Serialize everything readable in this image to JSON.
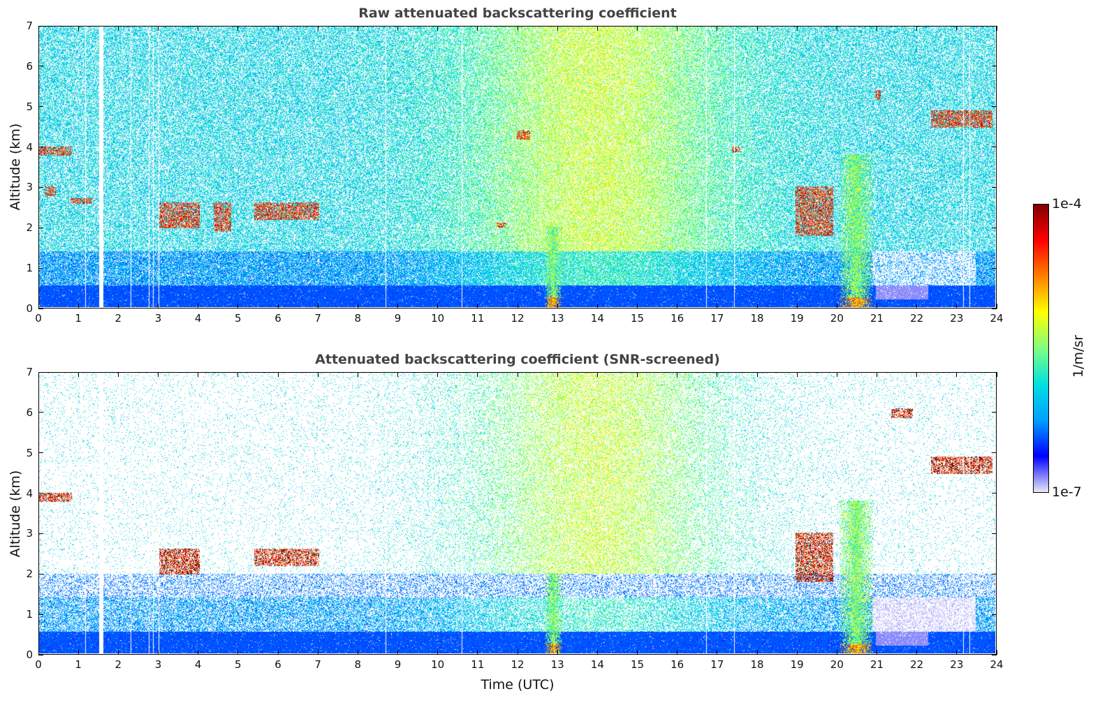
{
  "chart_data": [
    {
      "type": "heatmap",
      "title": "Raw attenuated backscattering coefficient",
      "xlabel": "",
      "ylabel": "Altitude (km)",
      "xlim": [
        0,
        24
      ],
      "ylim": [
        0,
        7
      ],
      "x_ticks": [
        "0",
        "1",
        "2",
        "3",
        "4",
        "5",
        "6",
        "7",
        "8",
        "9",
        "10",
        "11",
        "12",
        "13",
        "14",
        "15",
        "16",
        "17",
        "18",
        "19",
        "20",
        "21",
        "22",
        "23",
        "24"
      ],
      "y_ticks": [
        "0",
        "1",
        "2",
        "3",
        "4",
        "5",
        "6",
        "7"
      ],
      "features": [
        {
          "kind": "cloud",
          "t": [
            0.0,
            0.8
          ],
          "alt": [
            3.8,
            4.0
          ]
        },
        {
          "kind": "cloud",
          "t": [
            0.15,
            0.4
          ],
          "alt": [
            2.8,
            3.0
          ]
        },
        {
          "kind": "cloud",
          "t": [
            0.8,
            1.3
          ],
          "alt": [
            2.6,
            2.7
          ]
        },
        {
          "kind": "cloud",
          "t": [
            3.0,
            4.0
          ],
          "alt": [
            2.0,
            2.6
          ]
        },
        {
          "kind": "cloud",
          "t": [
            4.4,
            4.8
          ],
          "alt": [
            1.9,
            2.6
          ]
        },
        {
          "kind": "cloud",
          "t": [
            5.4,
            7.0
          ],
          "alt": [
            2.2,
            2.6
          ]
        },
        {
          "kind": "cloud",
          "t": [
            11.5,
            11.7
          ],
          "alt": [
            2.0,
            2.1
          ]
        },
        {
          "kind": "cloud",
          "t": [
            12.0,
            12.3
          ],
          "alt": [
            4.2,
            4.4
          ]
        },
        {
          "kind": "cloud",
          "t": [
            17.4,
            17.6
          ],
          "alt": [
            3.9,
            4.0
          ]
        },
        {
          "kind": "cloud",
          "t": [
            19.0,
            19.9
          ],
          "alt": [
            1.8,
            3.0
          ]
        },
        {
          "kind": "cloud",
          "t": [
            21.0,
            21.1
          ],
          "alt": [
            5.2,
            5.4
          ]
        },
        {
          "kind": "cloud",
          "t": [
            22.4,
            23.9
          ],
          "alt": [
            4.5,
            4.9
          ]
        },
        {
          "kind": "plume",
          "t": [
            12.7,
            13.1
          ],
          "alt": [
            0.0,
            2.0
          ]
        },
        {
          "kind": "plume",
          "t": [
            20.1,
            20.9
          ],
          "alt": [
            0.0,
            3.8
          ]
        }
      ],
      "data_gaps": [
        1.5,
        1.15,
        2.3,
        2.75,
        2.85,
        3.0,
        8.7,
        10.6,
        16.75,
        17.45,
        23.2,
        23.35
      ]
    },
    {
      "type": "heatmap",
      "title": "Attenuated backscattering coefficient (SNR-screened)",
      "xlabel": "Time (UTC)",
      "ylabel": "Altitude (km)",
      "xlim": [
        0,
        24
      ],
      "ylim": [
        0,
        7
      ],
      "x_ticks": [
        "0",
        "1",
        "2",
        "3",
        "4",
        "5",
        "6",
        "7",
        "8",
        "9",
        "10",
        "11",
        "12",
        "13",
        "14",
        "15",
        "16",
        "17",
        "18",
        "19",
        "20",
        "21",
        "22",
        "23",
        "24"
      ],
      "y_ticks": [
        "0",
        "1",
        "2",
        "3",
        "4",
        "5",
        "6",
        "7"
      ],
      "features": [
        {
          "kind": "cloud",
          "t": [
            0.0,
            0.8
          ],
          "alt": [
            3.8,
            4.0
          ]
        },
        {
          "kind": "cloud",
          "t": [
            3.0,
            4.0
          ],
          "alt": [
            2.0,
            2.6
          ]
        },
        {
          "kind": "cloud",
          "t": [
            5.4,
            7.0
          ],
          "alt": [
            2.2,
            2.6
          ]
        },
        {
          "kind": "cloud",
          "t": [
            19.0,
            19.9
          ],
          "alt": [
            1.8,
            3.0
          ]
        },
        {
          "kind": "cloud",
          "t": [
            21.4,
            21.9
          ],
          "alt": [
            5.9,
            6.1
          ]
        },
        {
          "kind": "cloud",
          "t": [
            22.4,
            23.9
          ],
          "alt": [
            4.5,
            4.9
          ]
        },
        {
          "kind": "plume",
          "t": [
            12.7,
            13.1
          ],
          "alt": [
            0.0,
            2.0
          ]
        },
        {
          "kind": "plume",
          "t": [
            20.1,
            20.9
          ],
          "alt": [
            0.0,
            3.8
          ]
        }
      ],
      "data_gaps": [
        1.5,
        1.15,
        2.3,
        2.75,
        2.85,
        3.0,
        8.7,
        10.6,
        16.75,
        17.45,
        23.2,
        23.35
      ]
    }
  ],
  "colorbar": {
    "max_label": "1e-4",
    "min_label": "1e-7",
    "unit_label": "1/m/sr",
    "colormap": [
      "#e8e8f8",
      "#0000ff",
      "#00a0ff",
      "#00e0e0",
      "#80ff80",
      "#ffff00",
      "#ff8000",
      "#ff0000",
      "#800000"
    ]
  }
}
